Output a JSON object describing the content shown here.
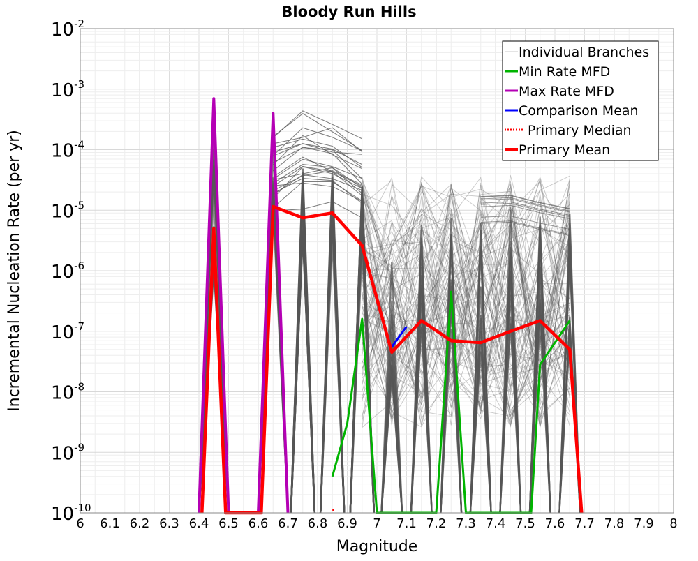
{
  "chart_data": {
    "type": "line",
    "title": "Bloody Run Hills",
    "xlabel": "Magnitude",
    "ylabel": "Incremental Nucleation Rate (per yr)",
    "xlim": [
      6,
      8
    ],
    "ylim": [
      1e-10,
      0.01
    ],
    "yscale": "log",
    "grid": true,
    "legend_position": "top-right",
    "x_ticks": [
      6,
      6.1,
      6.2,
      6.3,
      6.4,
      6.5,
      6.6,
      6.7,
      6.8,
      6.9,
      7,
      7.1,
      7.2,
      7.3,
      7.4,
      7.5,
      7.6,
      7.7,
      7.8,
      7.9,
      8
    ],
    "x_tick_labels": [
      "6",
      "6.1",
      "6.2",
      "6.3",
      "6.4",
      "6.5",
      "6.6",
      "6.7",
      "6.8",
      "6.9",
      "7",
      "7.1",
      "7.2",
      "7.3",
      "7.4",
      "7.5",
      "7.6",
      "7.7",
      "7.8",
      "7.9",
      "8"
    ],
    "y_tick_exponents": [
      "-10",
      "-9",
      "-8",
      "-7",
      "-6",
      "-5",
      "-4",
      "-3",
      "-2"
    ],
    "y_tick_base": "10",
    "legend": [
      {
        "label": "Individual Branches",
        "color": "#c8c8c8",
        "style": "thin"
      },
      {
        "label": "Min Rate MFD",
        "color": "#00b400",
        "style": "solid"
      },
      {
        "label": "Max Rate MFD",
        "color": "#b400b4",
        "style": "solid"
      },
      {
        "label": "Comparison Mean",
        "color": "#0000ff",
        "style": "solid"
      },
      {
        "label": "Primary Median",
        "color": "#ff0000",
        "style": "dotted"
      },
      {
        "label": "Primary Mean",
        "color": "#ff0000",
        "style": "thick"
      }
    ],
    "branch_color": "#555555",
    "series": [
      {
        "name": "Max Rate MFD",
        "color": "#b400b4",
        "x": [
          6.4,
          6.45,
          6.5,
          6.6,
          6.65,
          6.7
        ],
        "y": [
          1e-10,
          0.0007,
          1e-10,
          1e-10,
          0.0004,
          1e-10
        ]
      },
      {
        "name": "Comparison Mean",
        "color": "#0000ff",
        "x": [
          7.05,
          7.1
        ],
        "y": [
          5.5e-08,
          1.2e-07
        ]
      },
      {
        "name": "Min Rate MFD",
        "color": "#00b400",
        "x": [
          6.85,
          6.9,
          6.95,
          7.0,
          7.2,
          7.25,
          7.3,
          7.52,
          7.55,
          7.65
        ],
        "y": [
          4e-10,
          3e-09,
          1.6e-07,
          1e-10,
          1e-10,
          4.5e-07,
          1e-10,
          1e-10,
          2.8e-08,
          1.5e-07
        ]
      },
      {
        "name": "Primary Mean",
        "color": "#ff0000",
        "x": [
          6.41,
          6.45,
          6.49,
          6.61,
          6.65,
          6.75,
          6.85,
          6.95,
          7.05,
          7.15,
          7.25,
          7.35,
          7.45,
          7.55,
          7.65,
          7.69
        ],
        "y": [
          1e-10,
          5e-06,
          1e-10,
          1e-10,
          1.15e-05,
          7.5e-06,
          9e-06,
          2.6e-06,
          4.5e-08,
          1.5e-07,
          7e-08,
          6.5e-08,
          1e-07,
          1.5e-07,
          5e-08,
          1e-10
        ]
      },
      {
        "name": "Primary Median",
        "color": "#ff0000",
        "x": [
          6.85,
          6.855
        ],
        "y": [
          1.1e-10,
          1.1e-10
        ]
      }
    ]
  }
}
